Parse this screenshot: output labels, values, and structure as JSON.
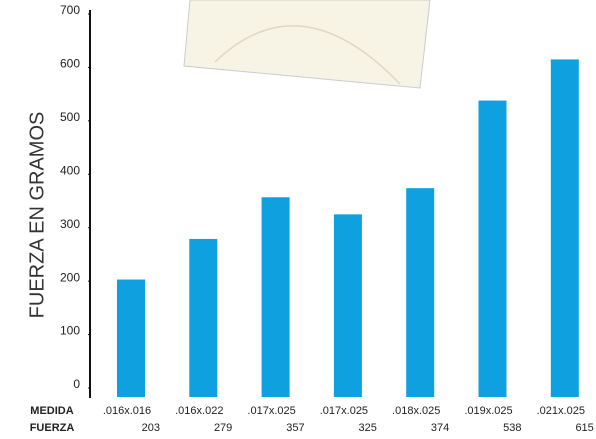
{
  "chart_data": {
    "type": "bar",
    "y_label": "FUERZA EN GRAMOS",
    "row_labels": [
      "MEDIDA",
      "FUERZA"
    ],
    "categories": [
      ".016x.016",
      ".016x.022",
      ".017x.025",
      ".017x.025",
      ".018x.025",
      ".019x.025",
      ".021x.025"
    ],
    "values": [
      203,
      279,
      357,
      325,
      374,
      538,
      615
    ],
    "color": "#0fa0e0",
    "ylim": [
      0,
      700
    ],
    "yticks": [
      0,
      100,
      200,
      300,
      400,
      500,
      600,
      700
    ],
    "grid": false
  }
}
